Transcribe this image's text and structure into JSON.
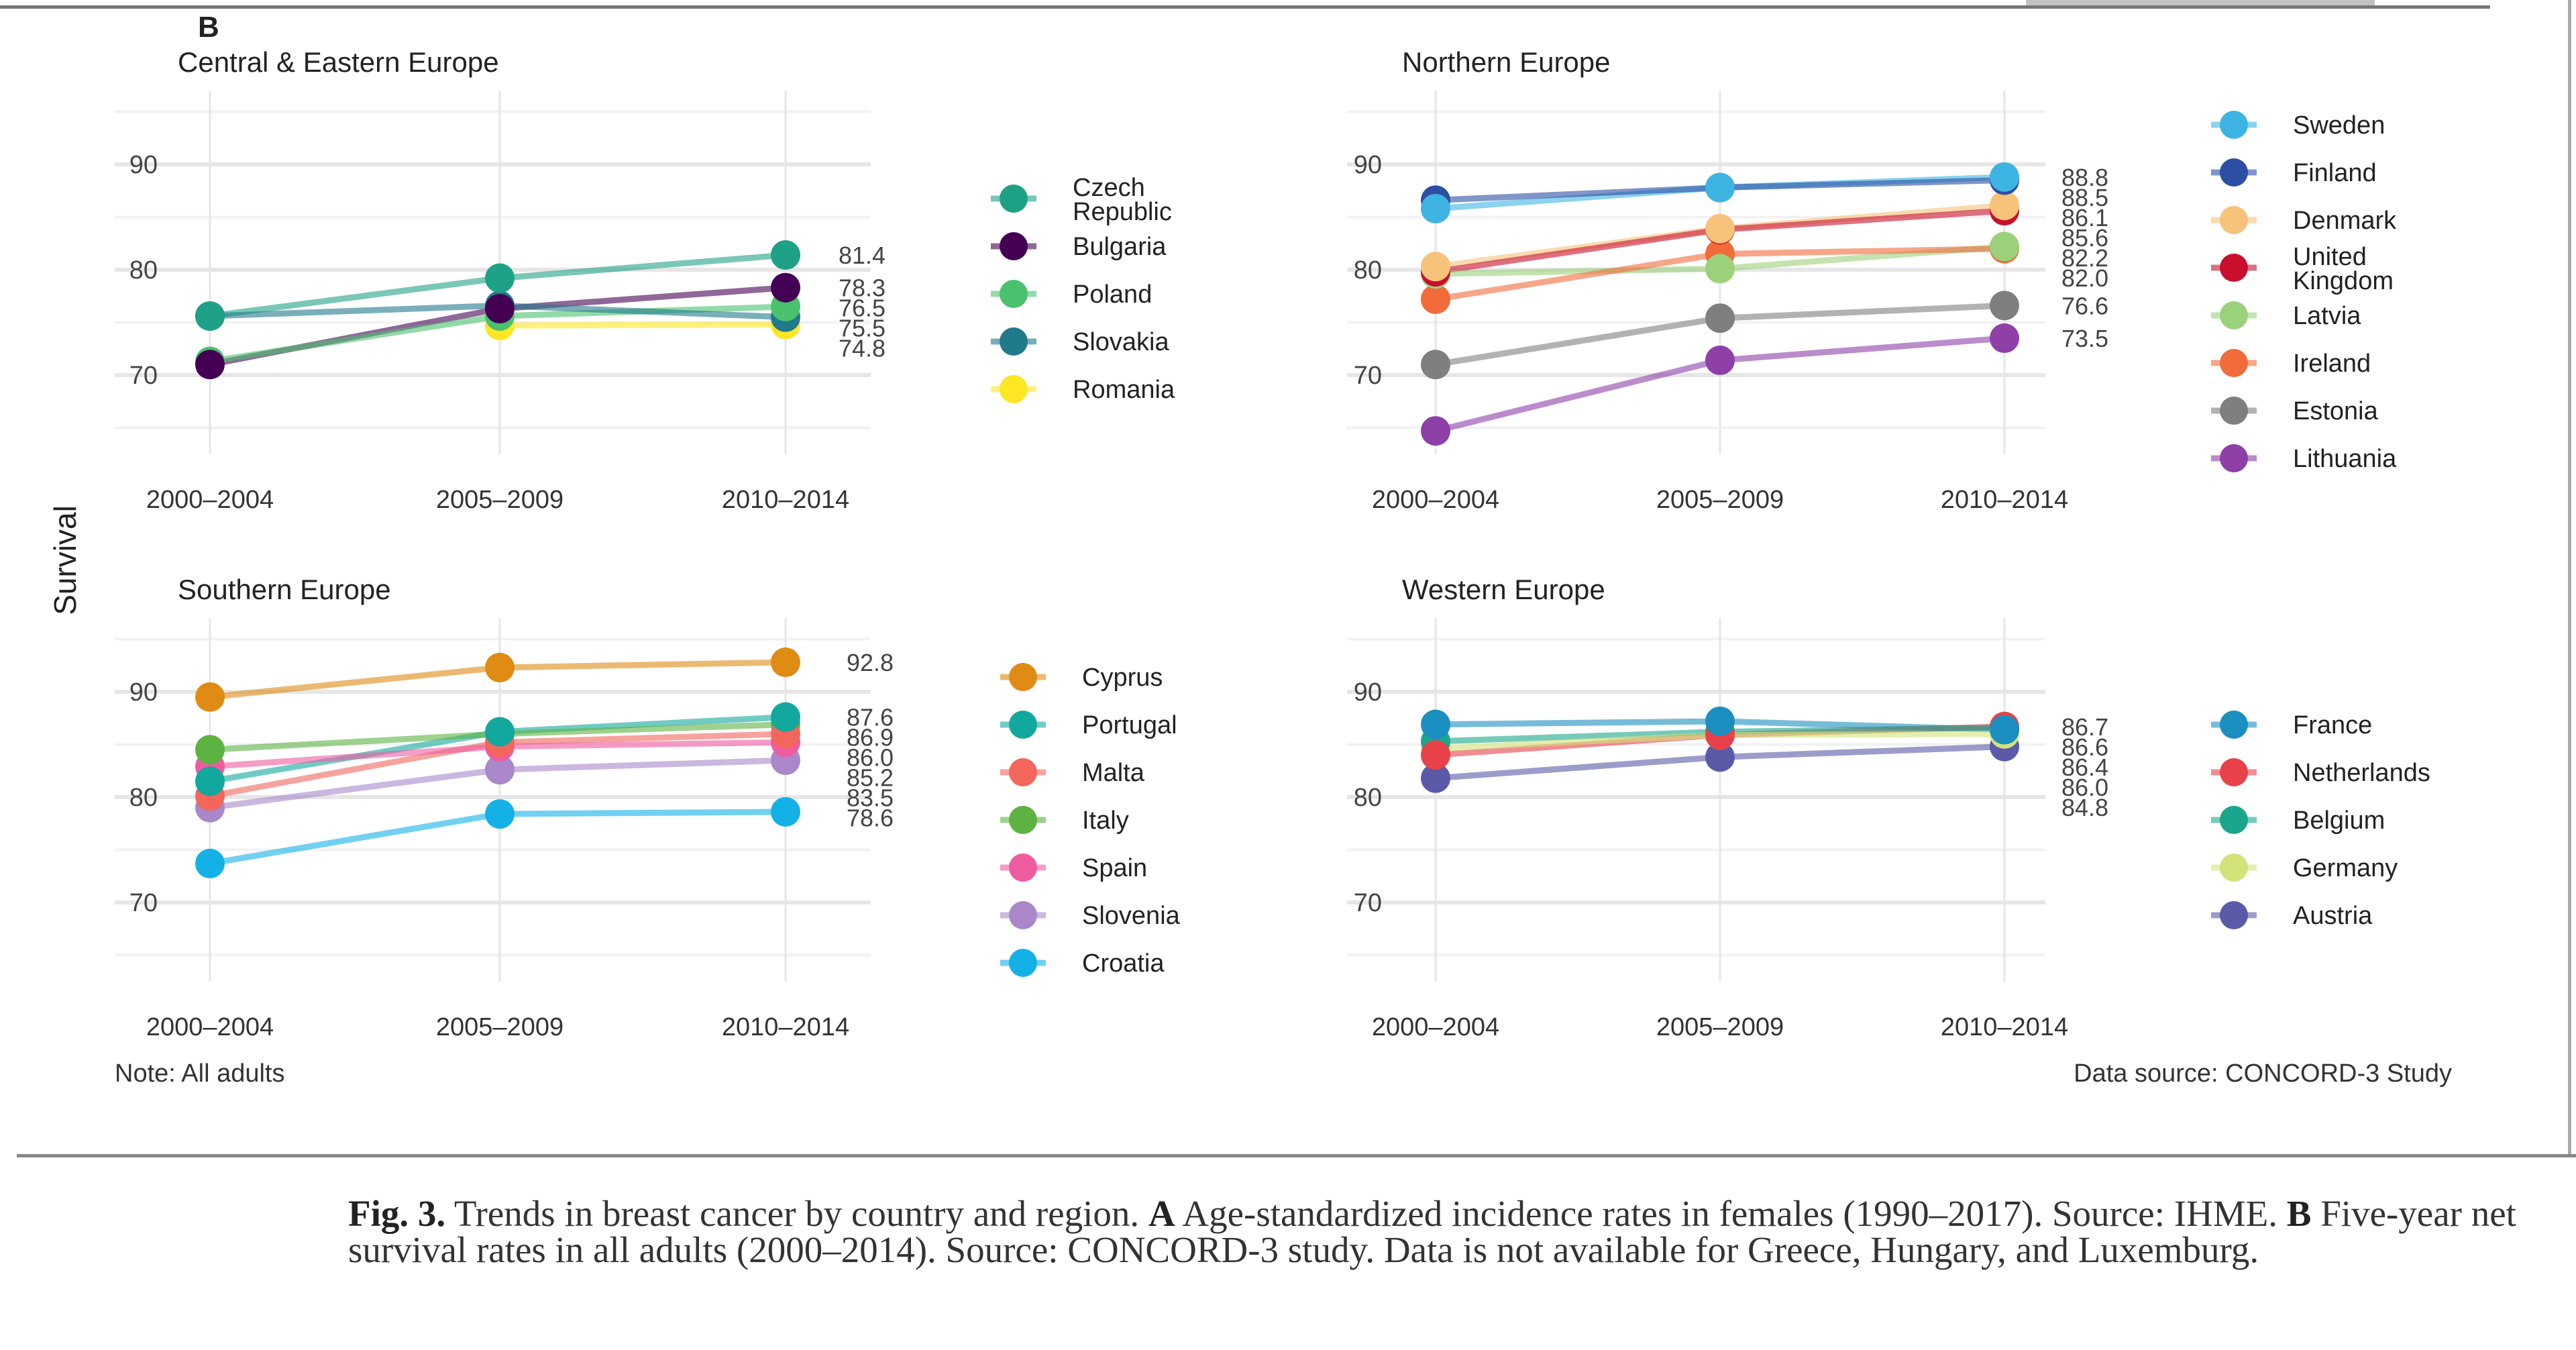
{
  "figure_label": "B",
  "ylabel": "Survival",
  "note": "Note: All adults",
  "data_source": "Data source: CONCORD-3 Study",
  "caption": {
    "fig": "Fig. 3.",
    "t1": " Trends in breast cancer by country and region. ",
    "a": "A",
    "t2": " Age-standardized incidence rates in females (1990–2017). Source: IHME. ",
    "b": "B",
    "t3": " Five-year net survival rates in all adults (2000–2014). Source: CONCORD-3 study. Data is not available for Greece, Hungary, and Luxemburg."
  },
  "chart_data": [
    {
      "type": "line",
      "title": "Central & Eastern Europe",
      "categories": [
        "2000–2004",
        "2005–2009",
        "2010–2014"
      ],
      "yticks": [
        70,
        80,
        90
      ],
      "ylim": [
        62.5,
        97
      ],
      "grid": true,
      "legend": "right",
      "series": [
        {
          "name": "Czech Republic",
          "color": "#1fa187",
          "values": [
            75.6,
            79.2,
            81.4
          ],
          "label": "81.4"
        },
        {
          "name": "Bulgaria",
          "color": "#440154",
          "values": [
            71.0,
            76.3,
            78.3
          ],
          "label": "78.3"
        },
        {
          "name": "Poland",
          "color": "#4ac16d",
          "values": [
            71.3,
            75.6,
            76.5
          ],
          "label": "76.5"
        },
        {
          "name": "Slovakia",
          "color": "#21798c",
          "values": [
            75.6,
            76.6,
            75.5
          ],
          "label": "75.5"
        },
        {
          "name": "Romania",
          "color": "#fde725",
          "values": [
            null,
            74.7,
            74.8
          ],
          "label": "74.8"
        }
      ]
    },
    {
      "type": "line",
      "title": "Northern Europe",
      "categories": [
        "2000–2004",
        "2005–2009",
        "2010–2014"
      ],
      "yticks": [
        70,
        80,
        90
      ],
      "ylim": [
        62.5,
        97
      ],
      "grid": true,
      "legend": "right",
      "series": [
        {
          "name": "Sweden",
          "color": "#3db4e2",
          "values": [
            85.8,
            87.8,
            88.8
          ],
          "label": "88.8"
        },
        {
          "name": "Finland",
          "color": "#2c4ea3",
          "values": [
            86.6,
            87.8,
            88.5
          ],
          "label": "88.5"
        },
        {
          "name": "Denmark",
          "color": "#f7c27a",
          "values": [
            80.3,
            83.9,
            86.1
          ],
          "label": "86.1"
        },
        {
          "name": "United Kingdom",
          "color": "#c8102e",
          "values": [
            79.8,
            83.8,
            85.6
          ],
          "label": "85.6"
        },
        {
          "name": "Latvia",
          "color": "#9bd17a",
          "values": [
            79.6,
            80.1,
            82.2
          ],
          "label": "82.2"
        },
        {
          "name": "Ireland",
          "color": "#f26b3a",
          "values": [
            77.2,
            81.5,
            82.0
          ],
          "label": "82.0"
        },
        {
          "name": "Estonia",
          "color": "#7f7f7f",
          "values": [
            71.0,
            75.4,
            76.6
          ],
          "label": "76.6"
        },
        {
          "name": "Lithuania",
          "color": "#8e3fa8",
          "values": [
            64.7,
            71.4,
            73.5
          ],
          "label": "73.5"
        }
      ]
    },
    {
      "type": "line",
      "title": "Southern Europe",
      "categories": [
        "2000–2004",
        "2005–2009",
        "2010–2014"
      ],
      "yticks": [
        70,
        80,
        90
      ],
      "ylim": [
        62.5,
        97
      ],
      "grid": true,
      "legend": "right",
      "series": [
        {
          "name": "Cyprus",
          "color": "#e08b14",
          "values": [
            89.5,
            92.3,
            92.8
          ],
          "label": "92.8"
        },
        {
          "name": "Portugal",
          "color": "#13a89e",
          "values": [
            81.5,
            86.2,
            87.6
          ],
          "label": "87.6"
        },
        {
          "name": "Malta",
          "color": "#f2665b",
          "values": [
            80.1,
            85.2,
            86.0
          ],
          "label": "86.0"
        },
        {
          "name": "Italy",
          "color": "#5db342",
          "values": [
            84.5,
            86.0,
            86.9
          ],
          "label": "86.9"
        },
        {
          "name": "Spain",
          "color": "#ef5ba1",
          "values": [
            82.9,
            84.8,
            85.2
          ],
          "label": "85.2"
        },
        {
          "name": "Slovenia",
          "color": "#a987c9",
          "values": [
            79.0,
            82.6,
            83.5
          ],
          "label": "83.5"
        },
        {
          "name": "Croatia",
          "color": "#14b1e7",
          "values": [
            73.7,
            78.4,
            78.6
          ],
          "label": "78.6"
        }
      ]
    },
    {
      "type": "line",
      "title": "Western Europe",
      "categories": [
        "2000–2004",
        "2005–2009",
        "2010–2014"
      ],
      "yticks": [
        70,
        80,
        90
      ],
      "ylim": [
        62.5,
        97
      ],
      "grid": true,
      "legend": "right",
      "series": [
        {
          "name": "France",
          "color": "#1a8fc0",
          "values": [
            86.9,
            87.2,
            86.4
          ],
          "label": "86.4"
        },
        {
          "name": "Netherlands",
          "color": "#e8414a",
          "values": [
            84.0,
            85.9,
            86.7
          ],
          "label": "86.7"
        },
        {
          "name": "Belgium",
          "color": "#1aa68a",
          "values": [
            85.3,
            86.2,
            86.6
          ],
          "label": "86.6"
        },
        {
          "name": "Germany",
          "color": "#d4e27a",
          "values": [
            84.6,
            85.9,
            86.0
          ],
          "label": "86.0"
        },
        {
          "name": "Austria",
          "color": "#5a5aa8",
          "values": [
            81.8,
            83.8,
            84.8
          ],
          "label": "84.8"
        }
      ]
    }
  ]
}
